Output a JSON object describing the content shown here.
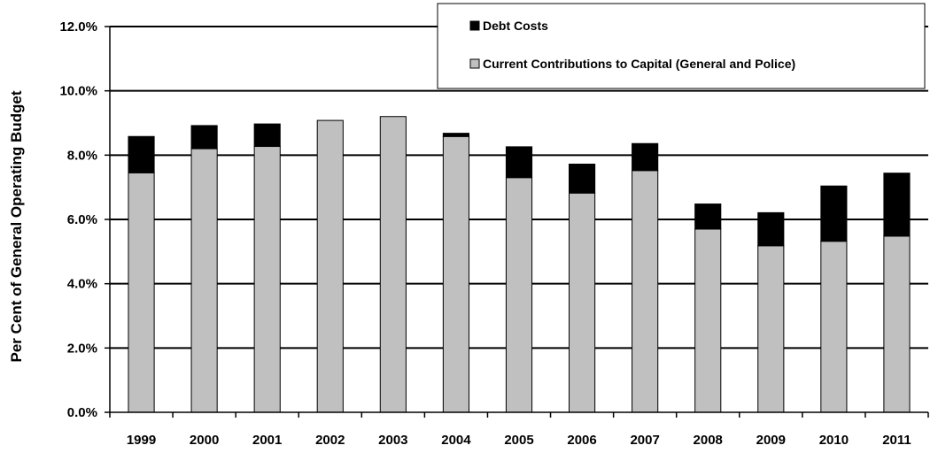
{
  "chart_data": {
    "type": "bar",
    "stacked": true,
    "categories": [
      "1999",
      "2000",
      "2001",
      "2002",
      "2003",
      "2004",
      "2005",
      "2006",
      "2007",
      "2008",
      "2009",
      "2010",
      "2011"
    ],
    "series": [
      {
        "name": "Current Contributions to Capital (General and Police)",
        "color": "#c0c0c0",
        "values": [
          7.45,
          8.2,
          8.27,
          9.08,
          9.2,
          8.58,
          7.3,
          6.82,
          7.52,
          5.7,
          5.18,
          5.32,
          5.48
        ]
      },
      {
        "name": "Debt Costs",
        "color": "#000000",
        "values": [
          1.13,
          0.72,
          0.7,
          0.0,
          0.0,
          0.1,
          0.96,
          0.9,
          0.84,
          0.78,
          1.03,
          1.72,
          1.96
        ]
      }
    ],
    "ylabel": "Per Cent of General Operating Budget",
    "ylim": [
      0,
      12
    ],
    "yticks": [
      "0.0%",
      "2.0%",
      "4.0%",
      "6.0%",
      "8.0%",
      "10.0%",
      "12.0%"
    ],
    "ytick_values": [
      0,
      2,
      4,
      6,
      8,
      10,
      12
    ],
    "grid": true,
    "legend_position": "top-right",
    "legend": [
      "Debt Costs",
      "Current Contributions to Capital (General and Police)"
    ]
  }
}
